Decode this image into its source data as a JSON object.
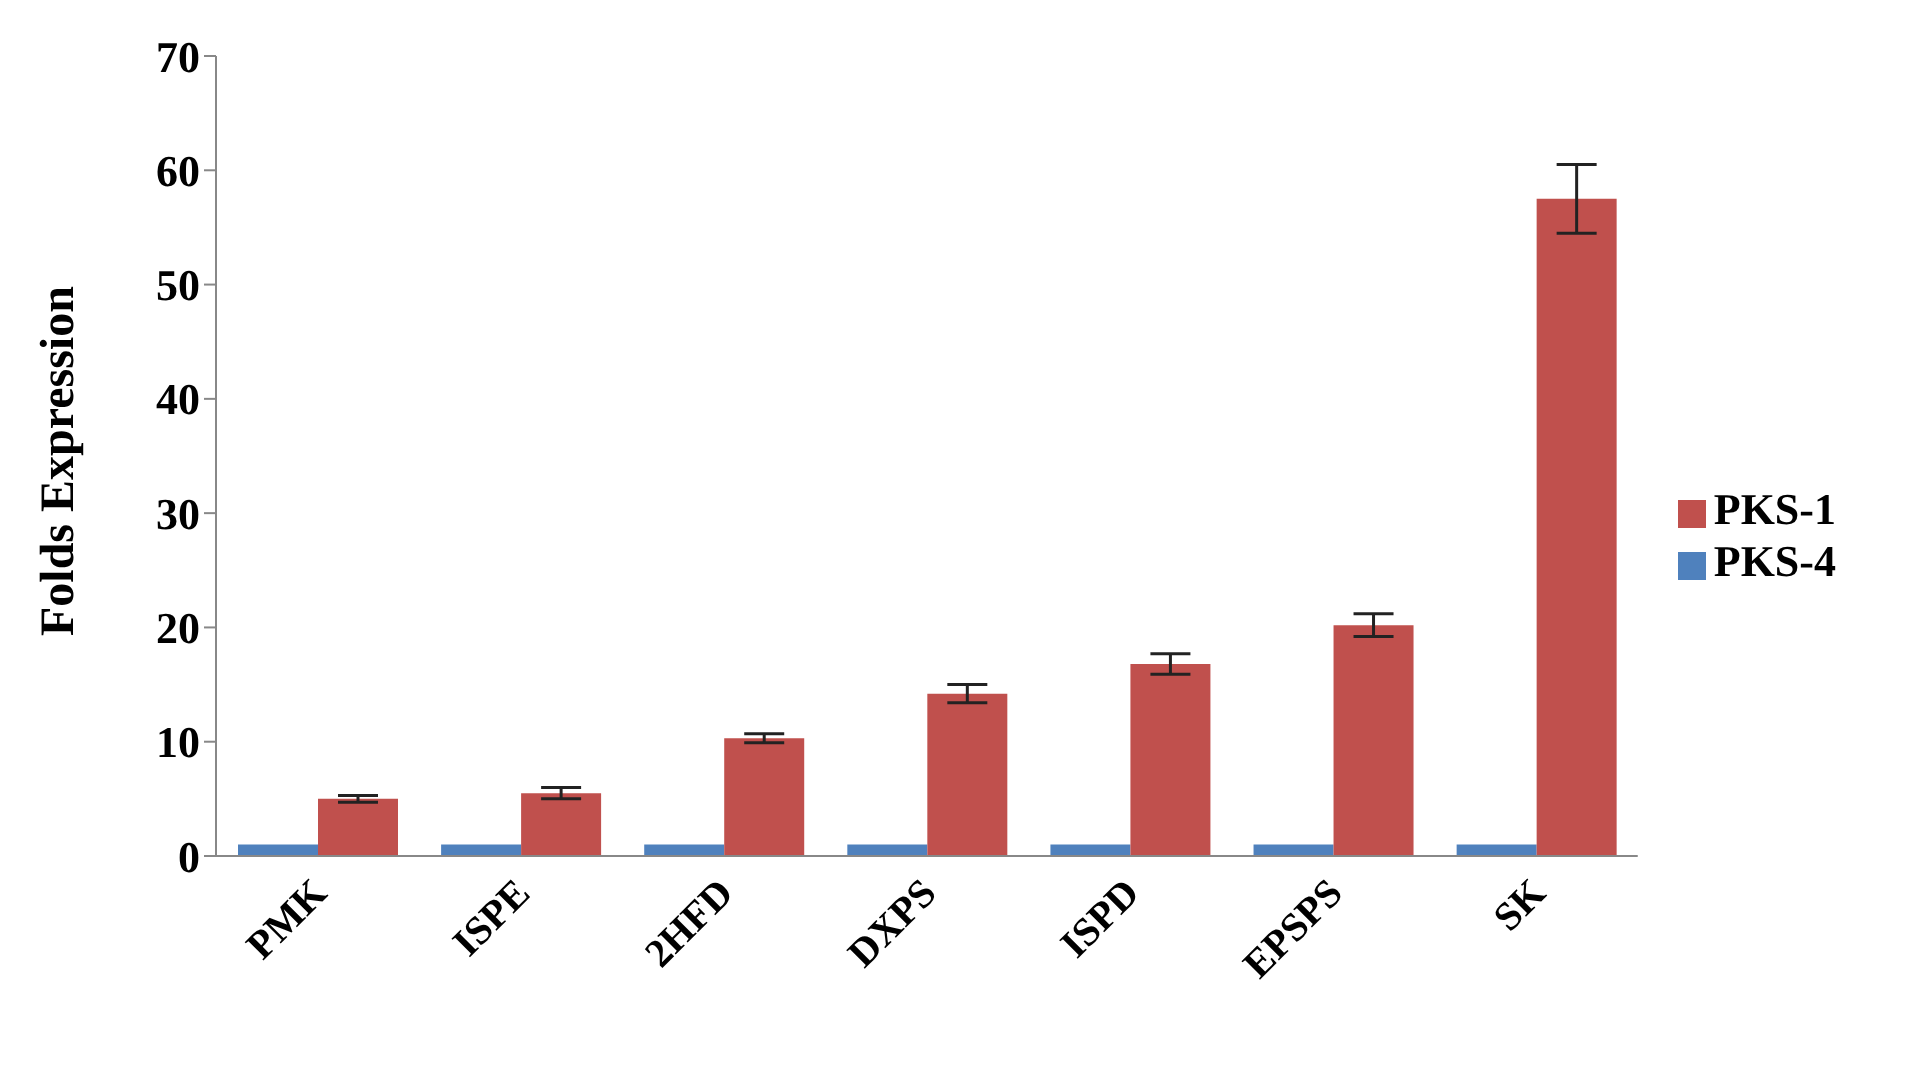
{
  "chart_data": {
    "type": "bar",
    "ylabel": "Folds Expression",
    "categories": [
      "PMK",
      "ISPE",
      "2HFD",
      "DXPS",
      "ISPD",
      "EPSPS",
      "SK"
    ],
    "series": [
      {
        "name": "PKS-4",
        "color": "#4f81bd",
        "values": [
          1,
          1,
          1,
          1,
          1,
          1,
          1
        ]
      },
      {
        "name": "PKS-1",
        "color": "#c0504d",
        "values": [
          5.0,
          5.5,
          10.3,
          14.2,
          16.8,
          20.2,
          57.5
        ],
        "errors": [
          0.3,
          0.5,
          0.4,
          0.8,
          0.9,
          1.0,
          3.0
        ]
      }
    ],
    "ylim": [
      0,
      70
    ],
    "yticks": [
      0,
      10,
      20,
      30,
      40,
      50,
      60,
      70
    ],
    "grid": false,
    "legend": "right"
  }
}
